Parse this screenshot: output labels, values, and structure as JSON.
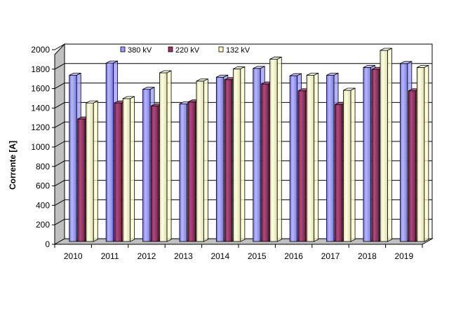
{
  "chart_data": {
    "type": "bar",
    "title": "",
    "xlabel": "",
    "ylabel": "Corrente [A]",
    "ylim": [
      0,
      2000
    ],
    "yticks": [
      "0",
      "200",
      "400",
      "600",
      "800",
      "1000",
      "1200",
      "1400",
      "1600",
      "1800",
      "2000"
    ],
    "categories": [
      "2010",
      "2011",
      "2012",
      "2013",
      "2014",
      "2015",
      "2016",
      "2017",
      "2018",
      "2019"
    ],
    "series": [
      {
        "name": "380 kV",
        "color": "#9999ff",
        "values": [
          1680,
          1805,
          1535,
          1385,
          1660,
          1750,
          1675,
          1680,
          1760,
          1800
        ]
      },
      {
        "name": "220 kV",
        "color": "#993366",
        "values": [
          1230,
          1395,
          1365,
          1405,
          1635,
          1590,
          1520,
          1380,
          1740,
          1520
        ]
      },
      {
        "name": "132 kV",
        "color": "#ffffcc",
        "values": [
          1395,
          1440,
          1705,
          1620,
          1745,
          1845,
          1680,
          1525,
          1935,
          1760
        ]
      }
    ],
    "grid": true,
    "legend_position": "top"
  }
}
